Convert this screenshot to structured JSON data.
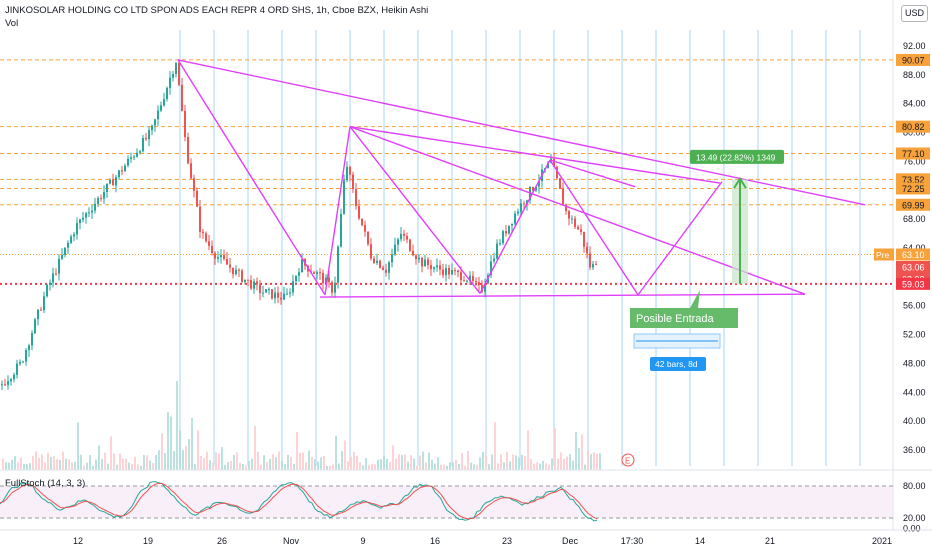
{
  "header": {
    "title": "JINKOSOLAR HOLDING CO LTD SPON ADS EACH REPR 4 ORD SHS, 1h, Cboe BZX, Heikin Ashi",
    "volume_label": "Vol",
    "currency": "USD",
    "stoch_label": "FullStoch (14, 3, 3)"
  },
  "colors": {
    "up": "#26a69a",
    "down": "#ef5350",
    "pattern": "#e040fb",
    "level": "#f7a23b",
    "support": "#f23645",
    "measure": "#4caf50",
    "range": "#2196f3"
  },
  "chart_data": {
    "type": "candlestick",
    "ylim": [
      34,
      94
    ],
    "y_ticks": [
      "92.00",
      "88.00",
      "84.00",
      "80.00",
      "76.00",
      "72.00",
      "68.00",
      "64.00",
      "60.00",
      "56.00",
      "52.00",
      "48.00",
      "44.00",
      "40.00",
      "36.00"
    ],
    "x_ticks": [
      "12",
      "19",
      "26",
      "Nov",
      "9",
      "16",
      "23",
      "Dec",
      "17:30",
      "14",
      "21",
      "2021"
    ],
    "levels": [
      "90.07",
      "80.82",
      "77.10",
      "73.52",
      "72.25",
      "69.99"
    ],
    "current_price": "63.10",
    "current_tag": "Pre",
    "price_tags": [
      "63.06",
      "62.93"
    ],
    "support_level": "59.03",
    "projection_label": "13.49 (22.82%) 1349",
    "entry_label": "Posible Entrada",
    "range_label": "42 bars, 8d",
    "event_marker": "E",
    "stochastic": {
      "ticks": [
        "80.00",
        "20.00",
        "0.00"
      ],
      "upper": 80,
      "lower": 20
    }
  }
}
